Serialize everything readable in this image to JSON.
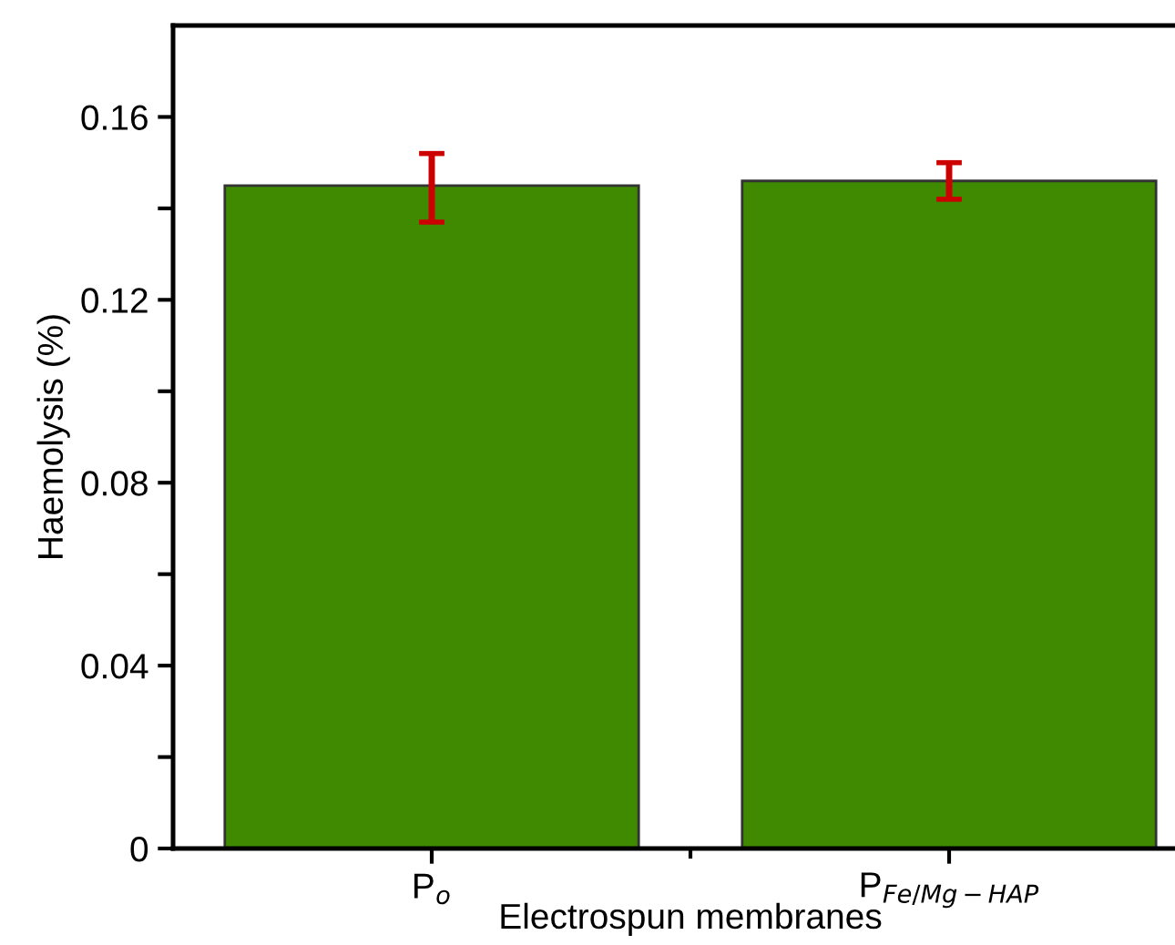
{
  "chart_data": {
    "type": "bar",
    "xlabel": "Electrospun membranes",
    "ylabel": "Haemolysis (%)",
    "categories": [
      "P$_{o}$",
      "P$_{Fe/Mg−HAP}$"
    ],
    "values": [
      0.145,
      0.146
    ],
    "errors": [
      [
        0.137,
        0.152
      ],
      [
        0.142,
        0.15
      ]
    ],
    "color": "#3f8a00",
    "ylim": [
      0,
      0.18
    ],
    "yticks": [
      {
        "value": 0,
        "label": "0"
      },
      {
        "value": 0.02,
        "label": null
      },
      {
        "value": 0.04,
        "label": "0.04"
      },
      {
        "value": 0.06,
        "label": null
      },
      {
        "value": 0.08,
        "label": "0.08"
      },
      {
        "value": 0.1,
        "label": null
      },
      {
        "value": 0.12,
        "label": "0.12"
      },
      {
        "value": 0.14,
        "label": null
      },
      {
        "value": 0.16,
        "label": "0.16"
      }
    ],
    "grid": false,
    "legend": false
  }
}
